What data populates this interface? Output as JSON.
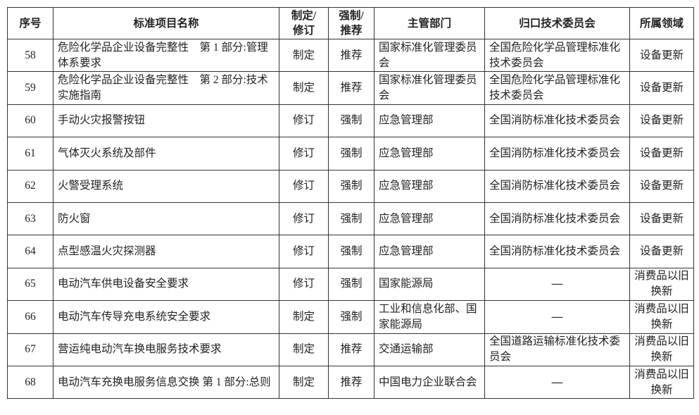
{
  "headers": [
    "序号",
    "标准项目名称",
    "制定/\n修订",
    "强制/\n推荐",
    "主管部门",
    "归口技术委员会",
    "所属领域"
  ],
  "header_lines": {
    "c2a": "制定/",
    "c2b": "修订",
    "c3a": "强制/",
    "c3b": "推荐"
  },
  "rows": [
    {
      "no": "58",
      "name": "危险化学品企业设备完整性　第 1 部分:管理体系要求",
      "type": "制定",
      "level": "推荐",
      "dept": "国家标准化管理委员会",
      "committee": "全国危险化学品管理标准化技术委员会",
      "field": "设备更新"
    },
    {
      "no": "59",
      "name": "危险化学品企业设备完整性　第 2 部分:技术实施指南",
      "type": "制定",
      "level": "推荐",
      "dept": "国家标准化管理委员会",
      "committee": "全国危险化学品管理标准化技术委员会",
      "field": "设备更新"
    },
    {
      "no": "60",
      "name": "手动火灾报警按钮",
      "type": "修订",
      "level": "强制",
      "dept": "应急管理部",
      "committee": "全国消防标准化技术委员会",
      "field": "设备更新"
    },
    {
      "no": "61",
      "name": "气体灭火系统及部件",
      "type": "修订",
      "level": "强制",
      "dept": "应急管理部",
      "committee": "全国消防标准化技术委员会",
      "field": "设备更新"
    },
    {
      "no": "62",
      "name": "火警受理系统",
      "type": "修订",
      "level": "强制",
      "dept": "应急管理部",
      "committee": "全国消防标准化技术委员会",
      "field": "设备更新"
    },
    {
      "no": "63",
      "name": "防火窗",
      "type": "修订",
      "level": "强制",
      "dept": "应急管理部",
      "committee": "全国消防标准化技术委员会",
      "field": "设备更新"
    },
    {
      "no": "64",
      "name": "点型感温火灾探测器",
      "type": "修订",
      "level": "强制",
      "dept": "应急管理部",
      "committee": "全国消防标准化技术委员会",
      "field": "设备更新"
    },
    {
      "no": "65",
      "name": "电动汽车供电设备安全要求",
      "type": "修订",
      "level": "强制",
      "dept": "国家能源局",
      "committee": "—",
      "field": "消费品以旧换新"
    },
    {
      "no": "66",
      "name": "电动汽车传导充电系统安全要求",
      "type": "制定",
      "level": "强制",
      "dept": "工业和信息化部、国家能源局",
      "committee": "—",
      "field": "消费品以旧换新"
    },
    {
      "no": "67",
      "name": "营运纯电动汽车换电服务技术要求",
      "type": "制定",
      "level": "推荐",
      "dept": "交通运输部",
      "committee": "全国道路运输标准化技术委员会",
      "field": "消费品以旧换新"
    },
    {
      "no": "68",
      "name": "电动汽车充换电服务信息交换 第 1 部分:总则",
      "type": "制定",
      "level": "推荐",
      "dept": "中国电力企业联合会",
      "committee": "—",
      "field": "消费品以旧换新"
    }
  ]
}
